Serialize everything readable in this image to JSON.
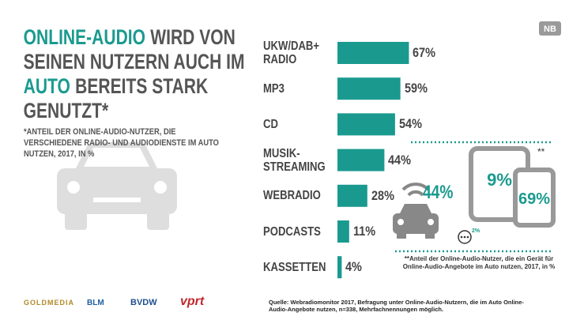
{
  "badge": "NB",
  "title_lines": [
    [
      {
        "text": "ONLINE-AUDIO",
        "color": "#1a9a8f"
      },
      {
        "text": "WIRD VON",
        "color": "#555555"
      }
    ],
    [
      {
        "text": "SEINEN NUTZERN AUCH IM",
        "color": "#555555"
      }
    ],
    [
      {
        "text": "AUTO",
        "color": "#1a9a8f"
      },
      {
        "text": "BEREITS STARK",
        "color": "#555555"
      }
    ],
    [
      {
        "text": "GENUTZT*",
        "color": "#555555"
      }
    ]
  ],
  "subtitle": "*ANTEIL DER ONLINE-AUDIO-NUTZER, DIE VERSCHIEDENE RADIO- UND AUDIODIENSTE IM AUTO NUTZEN, 2017, IN %",
  "chart_data": {
    "type": "bar",
    "orientation": "horizontal",
    "color": "#1a9a8f",
    "categories": [
      "UKW/DAB+ RADIO",
      "MP3",
      "CD",
      "MUSIK-STREAMING",
      "WEBRADIO",
      "PODCASTS",
      "KASSETTEN"
    ],
    "values": [
      67,
      59,
      54,
      44,
      28,
      11,
      4
    ],
    "value_labels": [
      "67%",
      "59%",
      "54%",
      "44%",
      "28%",
      "11%",
      "4%"
    ]
  },
  "devices": {
    "marker": "**",
    "car": "44%",
    "tablet": "9%",
    "phone": "69%",
    "other": "2%",
    "footnote": "**Anteil der Online-Audio-Nutzer, die ein Gerät für Online-Audio-Angebote im Auto nutzen, 2017, in %"
  },
  "source": "Quelle: Webradiomonitor 2017, Befragung unter Online-Audio-Nutzern, die im Auto Online-Audio-Angebote nutzen, n=338, Mehrfachnennungen möglich.",
  "logos": [
    "GOLDMEDIA",
    "BLM",
    "BVDW",
    "vprt"
  ]
}
